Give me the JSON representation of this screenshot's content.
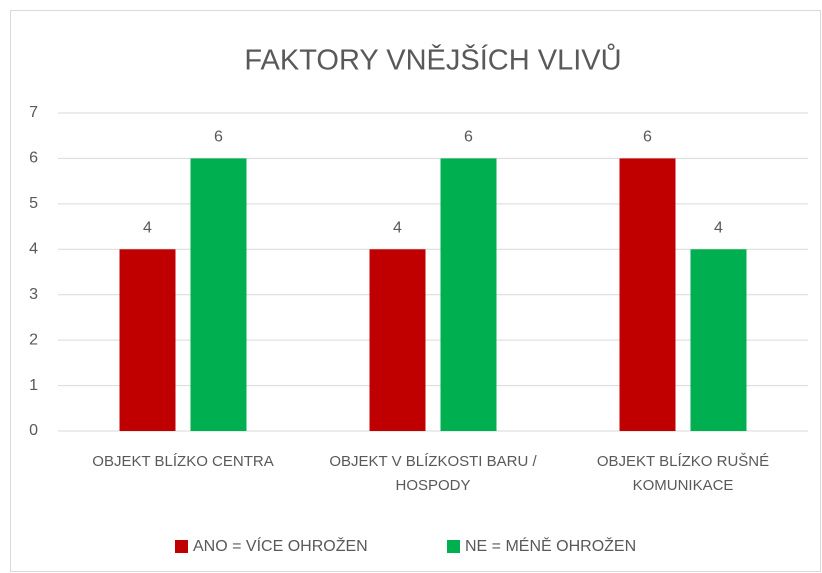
{
  "chart_data": {
    "type": "bar",
    "title": "FAKTORY VNĚJŠÍCH VLIVŮ",
    "categories": [
      "OBJEKT BLÍZKO CENTRA",
      "OBJEKT V BLÍZKOSTI BARU / HOSPODY",
      "OBJEKT BLÍZKO RUŠNÉ KOMUNIKACE"
    ],
    "series": [
      {
        "name": "ANO = VÍCE OHROŽEN",
        "color": "#c00000",
        "values": [
          4,
          4,
          6
        ]
      },
      {
        "name": "NE = MÉNĚ OHROŽEN",
        "color": "#00b050",
        "values": [
          6,
          6,
          4
        ]
      }
    ],
    "ylim": [
      0,
      7
    ],
    "yticks": [
      0,
      1,
      2,
      3,
      4,
      5,
      6,
      7
    ],
    "grid": true,
    "legend": "bottom"
  }
}
